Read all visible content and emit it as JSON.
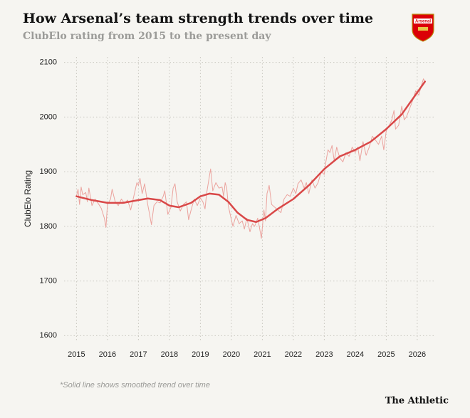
{
  "chart_data": {
    "type": "line",
    "title": "How Arsenal’s team strength trends over time",
    "subtitle": "ClubElo rating from 2015 to the present day",
    "y_label": "ClubElo Rating",
    "footnote": "*Solid line shows smoothed trend over time",
    "source": "The Athletic",
    "badge_text": "Arsenal",
    "xlim": [
      2014.6,
      2026.6
    ],
    "xticks": [
      2015,
      2016,
      2017,
      2018,
      2019,
      2020,
      2021,
      2022,
      2023,
      2024,
      2025,
      2026
    ],
    "ylim": [
      1590,
      2110
    ],
    "yticks": [
      1600,
      1700,
      1800,
      1900,
      2000,
      2100
    ],
    "grid": true,
    "series": [
      {
        "color": "#eba39e",
        "width": 1,
        "x": [
          2015.0,
          2015.05,
          2015.1,
          2015.15,
          2015.2,
          2015.3,
          2015.35,
          2015.4,
          2015.5,
          2015.6,
          2015.7,
          2015.8,
          2015.9,
          2015.95,
          2016.0,
          2016.1,
          2016.15,
          2016.25,
          2016.35,
          2016.45,
          2016.55,
          2016.65,
          2016.75,
          2016.85,
          2016.95,
          2017.0,
          2017.05,
          2017.12,
          2017.2,
          2017.3,
          2017.35,
          2017.42,
          2017.5,
          2017.6,
          2017.7,
          2017.8,
          2017.85,
          2017.95,
          2018.05,
          2018.12,
          2018.18,
          2018.25,
          2018.35,
          2018.45,
          2018.55,
          2018.62,
          2018.7,
          2018.8,
          2018.9,
          2019.0,
          2019.08,
          2019.15,
          2019.2,
          2019.3,
          2019.33,
          2019.4,
          2019.5,
          2019.6,
          2019.7,
          2019.75,
          2019.8,
          2019.85,
          2019.9,
          2020.0,
          2020.05,
          2020.15,
          2020.25,
          2020.35,
          2020.42,
          2020.5,
          2020.6,
          2020.68,
          2020.75,
          2020.85,
          2020.9,
          2020.97,
          2021.05,
          2021.1,
          2021.15,
          2021.22,
          2021.3,
          2021.4,
          2021.5,
          2021.6,
          2021.7,
          2021.8,
          2021.9,
          2022.0,
          2022.08,
          2022.15,
          2022.25,
          2022.35,
          2022.42,
          2022.5,
          2022.6,
          2022.7,
          2022.8,
          2022.9,
          2023.0,
          2023.05,
          2023.12,
          2023.18,
          2023.25,
          2023.32,
          2023.4,
          2023.5,
          2023.6,
          2023.7,
          2023.8,
          2023.9,
          2024.0,
          2024.08,
          2024.15,
          2024.25,
          2024.35,
          2024.45,
          2024.55,
          2024.65,
          2024.75,
          2024.85,
          2024.92,
          2025.0,
          2025.1,
          2025.18,
          2025.25,
          2025.3,
          2025.4,
          2025.5,
          2025.58,
          2025.65,
          2025.75,
          2025.85,
          2025.95,
          2026.05,
          2026.12,
          2026.2,
          2026.25
        ],
        "values": [
          1855,
          1868,
          1840,
          1872,
          1858,
          1862,
          1845,
          1870,
          1838,
          1850,
          1842,
          1833,
          1815,
          1798,
          1840,
          1850,
          1868,
          1845,
          1838,
          1850,
          1842,
          1848,
          1830,
          1855,
          1880,
          1875,
          1888,
          1860,
          1878,
          1840,
          1825,
          1803,
          1838,
          1845,
          1843,
          1855,
          1865,
          1822,
          1835,
          1870,
          1878,
          1845,
          1828,
          1840,
          1845,
          1812,
          1830,
          1850,
          1838,
          1852,
          1845,
          1832,
          1860,
          1895,
          1905,
          1865,
          1880,
          1870,
          1872,
          1855,
          1880,
          1870,
          1838,
          1812,
          1800,
          1820,
          1805,
          1810,
          1795,
          1815,
          1790,
          1805,
          1800,
          1815,
          1800,
          1778,
          1830,
          1810,
          1860,
          1875,
          1840,
          1835,
          1830,
          1825,
          1850,
          1858,
          1855,
          1870,
          1860,
          1878,
          1885,
          1870,
          1880,
          1860,
          1885,
          1870,
          1880,
          1900,
          1895,
          1918,
          1940,
          1935,
          1948,
          1920,
          1945,
          1925,
          1918,
          1935,
          1928,
          1945,
          1935,
          1945,
          1920,
          1955,
          1930,
          1945,
          1965,
          1958,
          1950,
          1965,
          1940,
          1975,
          1985,
          1995,
          2012,
          1978,
          1985,
          2020,
          1995,
          2000,
          2015,
          2030,
          2048,
          2040,
          2055,
          2070,
          2065
        ]
      },
      {
        "color": "#d94848",
        "width": 2.5,
        "x": [
          2015.0,
          2015.5,
          2016.0,
          2016.5,
          2017.0,
          2017.3,
          2017.7,
          2018.0,
          2018.3,
          2018.7,
          2019.0,
          2019.3,
          2019.6,
          2019.9,
          2020.2,
          2020.5,
          2020.8,
          2021.1,
          2021.5,
          2022.0,
          2022.5,
          2023.0,
          2023.5,
          2024.0,
          2024.5,
          2025.0,
          2025.5,
          2026.0,
          2026.25
        ],
        "values": [
          1855,
          1848,
          1843,
          1843,
          1848,
          1851,
          1848,
          1838,
          1835,
          1843,
          1855,
          1860,
          1858,
          1845,
          1825,
          1812,
          1808,
          1815,
          1832,
          1850,
          1875,
          1905,
          1928,
          1940,
          1955,
          1978,
          2005,
          2045,
          2065
        ]
      }
    ]
  }
}
